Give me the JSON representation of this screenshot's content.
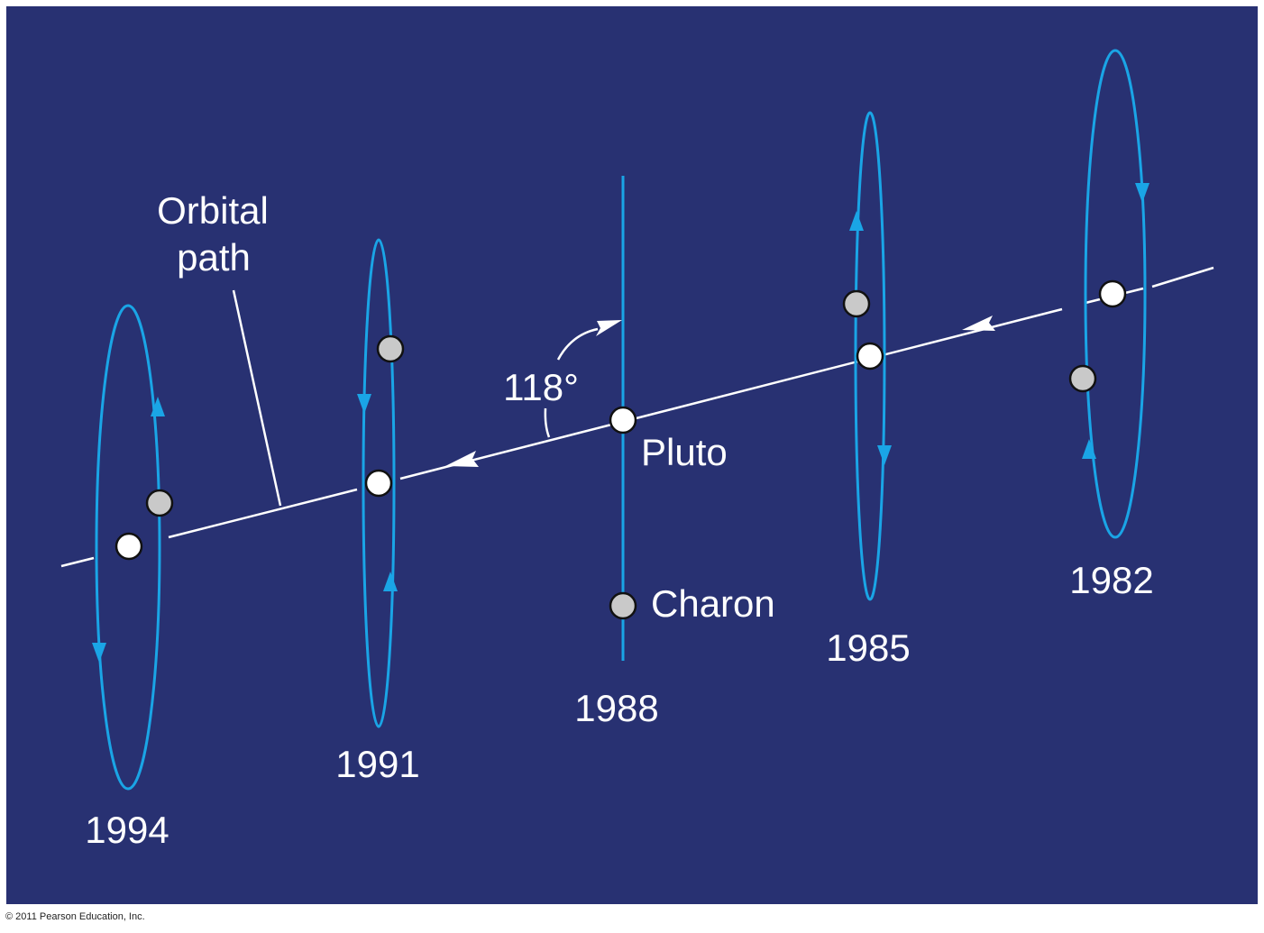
{
  "diagram": {
    "labels": {
      "orbital_path_line1": "Orbital",
      "orbital_path_line2": "path",
      "angle": "118°",
      "pluto": "Pluto",
      "charon": "Charon"
    },
    "years": [
      "1994",
      "1991",
      "1988",
      "1985",
      "1982"
    ],
    "copyright": "© 2011 Pearson Education, Inc."
  },
  "colors": {
    "background": "#283172",
    "orbit": "#1aa5e6",
    "path": "#ffffff",
    "pluto_fill": "#ffffff",
    "charon_fill": "#c9c9c9",
    "outline": "#111111"
  }
}
